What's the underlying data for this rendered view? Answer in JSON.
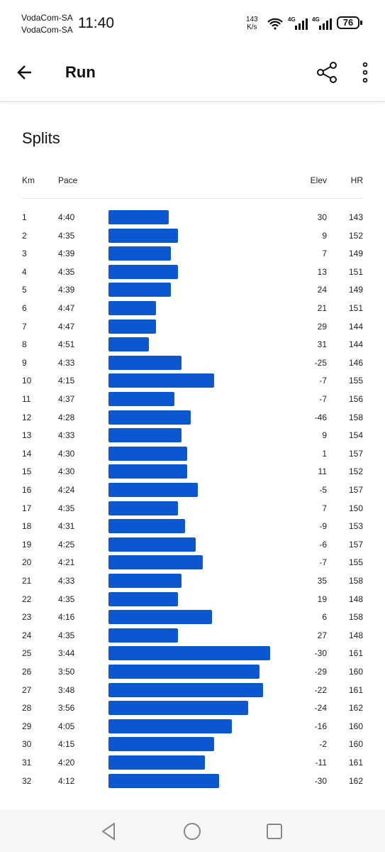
{
  "status_bar": {
    "carrier_1": "VodaCom-SA",
    "carrier_2": "VodaCom-SA",
    "time": "11:40",
    "speed_value": "143",
    "speed_unit": "K/s",
    "network_1": "4G",
    "network_2": "4G",
    "battery": "76"
  },
  "app_bar": {
    "title": "Run"
  },
  "splits": {
    "title": "Splits",
    "headers": {
      "km": "Km",
      "pace": "Pace",
      "elev": "Elev",
      "hr": "HR"
    },
    "rows": [
      {
        "km": 1,
        "pace": {
          "value": 280,
          "label": "4:40"
        },
        "elev": 30,
        "hr": 143
      },
      {
        "km": 2,
        "pace": {
          "value": 275,
          "label": "4:35"
        },
        "elev": 9,
        "hr": 152
      },
      {
        "km": 3,
        "pace": {
          "value": 279,
          "label": "4:39"
        },
        "elev": 7,
        "hr": 149
      },
      {
        "km": 4,
        "pace": {
          "value": 275,
          "label": "4:35"
        },
        "elev": 13,
        "hr": 151
      },
      {
        "km": 5,
        "pace": {
          "value": 279,
          "label": "4:39"
        },
        "elev": 24,
        "hr": 149
      },
      {
        "km": 6,
        "pace": {
          "value": 287,
          "label": "4:47"
        },
        "elev": 21,
        "hr": 151
      },
      {
        "km": 7,
        "pace": {
          "value": 287,
          "label": "4:47"
        },
        "elev": 29,
        "hr": 144
      },
      {
        "km": 8,
        "pace": {
          "value": 291,
          "label": "4:51"
        },
        "elev": 31,
        "hr": 144
      },
      {
        "km": 9,
        "pace": {
          "value": 273,
          "label": "4:33"
        },
        "elev": -25,
        "hr": 146
      },
      {
        "km": 10,
        "pace": {
          "value": 255,
          "label": "4:15"
        },
        "elev": -7,
        "hr": 155
      },
      {
        "km": 11,
        "pace": {
          "value": 277,
          "label": "4:37"
        },
        "elev": -7,
        "hr": 156
      },
      {
        "km": 12,
        "pace": {
          "value": 268,
          "label": "4:28"
        },
        "elev": -46,
        "hr": 158
      },
      {
        "km": 13,
        "pace": {
          "value": 273,
          "label": "4:33"
        },
        "elev": 9,
        "hr": 154
      },
      {
        "km": 14,
        "pace": {
          "value": 270,
          "label": "4:30"
        },
        "elev": 1,
        "hr": 157
      },
      {
        "km": 15,
        "pace": {
          "value": 270,
          "label": "4:30"
        },
        "elev": 11,
        "hr": 152
      },
      {
        "km": 16,
        "pace": {
          "value": 264,
          "label": "4:24"
        },
        "elev": -5,
        "hr": 157
      },
      {
        "km": 17,
        "pace": {
          "value": 275,
          "label": "4:35"
        },
        "elev": 7,
        "hr": 150
      },
      {
        "km": 18,
        "pace": {
          "value": 271,
          "label": "4:31"
        },
        "elev": -9,
        "hr": 153
      },
      {
        "km": 19,
        "pace": {
          "value": 265,
          "label": "4:25"
        },
        "elev": -6,
        "hr": 157
      },
      {
        "km": 20,
        "pace": {
          "value": 261,
          "label": "4:21"
        },
        "elev": -7,
        "hr": 155
      },
      {
        "km": 21,
        "pace": {
          "value": 273,
          "label": "4:33"
        },
        "elev": 35,
        "hr": 158
      },
      {
        "km": 22,
        "pace": {
          "value": 275,
          "label": "4:35"
        },
        "elev": 19,
        "hr": 148
      },
      {
        "km": 23,
        "pace": {
          "value": 256,
          "label": "4:16"
        },
        "elev": 6,
        "hr": 158
      },
      {
        "km": 24,
        "pace": {
          "value": 275,
          "label": "4:35"
        },
        "elev": 27,
        "hr": 148
      },
      {
        "km": 25,
        "pace": {
          "value": 224,
          "label": "3:44"
        },
        "elev": -30,
        "hr": 161
      },
      {
        "km": 26,
        "pace": {
          "value": 230,
          "label": "3:50"
        },
        "elev": -29,
        "hr": 160
      },
      {
        "km": 27,
        "pace": {
          "value": 228,
          "label": "3:48"
        },
        "elev": -22,
        "hr": 161
      },
      {
        "km": 28,
        "pace": {
          "value": 236,
          "label": "3:56"
        },
        "elev": -24,
        "hr": 162
      },
      {
        "km": 29,
        "pace": {
          "value": 245,
          "label": "4:05"
        },
        "elev": -16,
        "hr": 160
      },
      {
        "km": 30,
        "pace": {
          "value": 255,
          "label": "4:15"
        },
        "elev": -2,
        "hr": 160
      },
      {
        "km": 31,
        "pace": {
          "value": 260,
          "label": "4:20"
        },
        "elev": -11,
        "hr": 161
      },
      {
        "km": 32,
        "pace": {
          "value": 252,
          "label": "4:12"
        },
        "elev": -30,
        "hr": 162
      }
    ]
  }
}
